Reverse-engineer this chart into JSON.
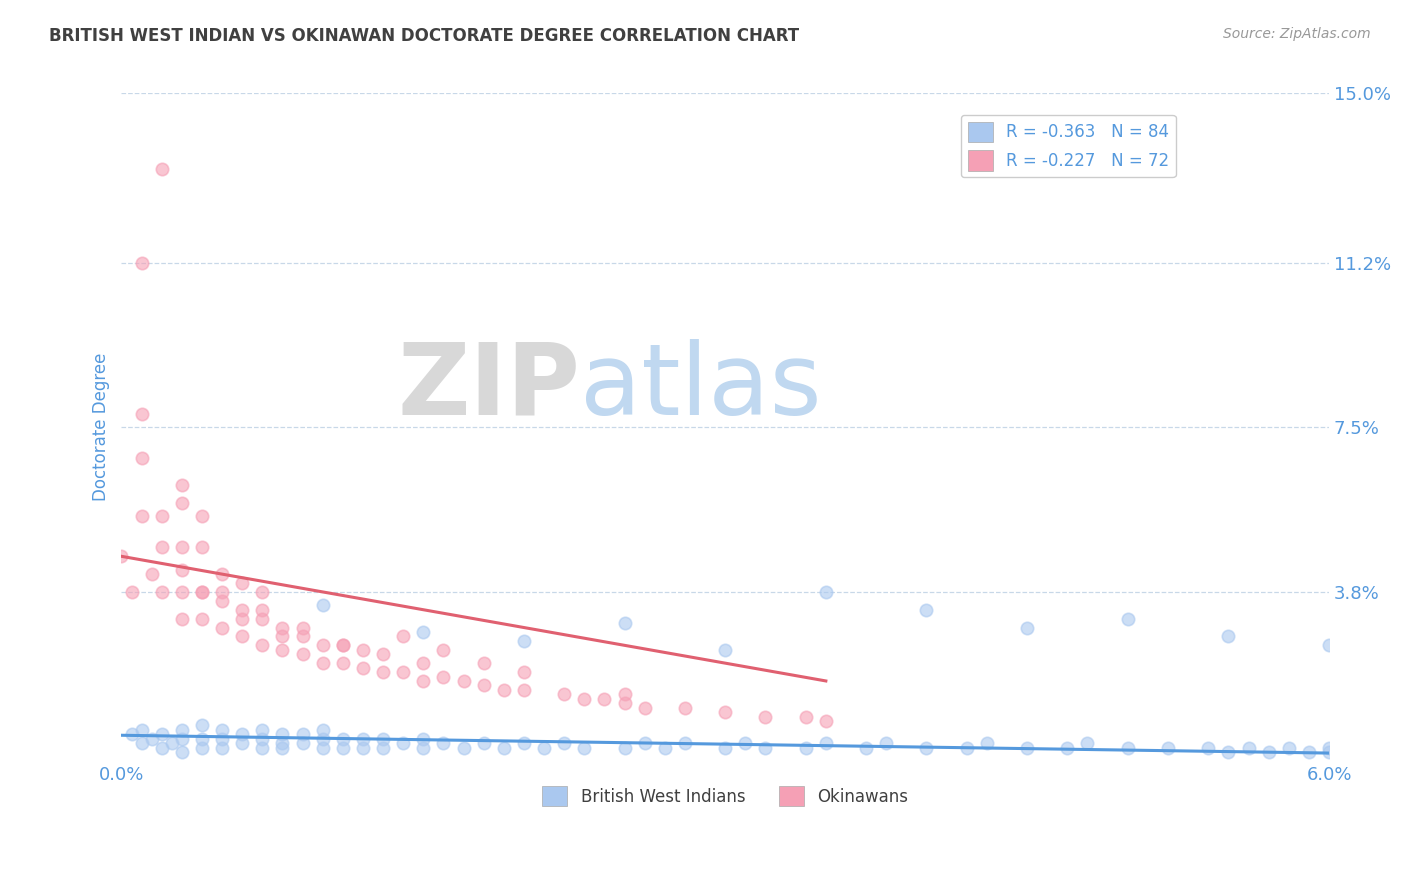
{
  "title": "BRITISH WEST INDIAN VS OKINAWAN DOCTORATE DEGREE CORRELATION CHART",
  "source": "Source: ZipAtlas.com",
  "ylabel": "Doctorate Degree",
  "xlim": [
    0.0,
    0.06
  ],
  "ylim": [
    0.0,
    0.15
  ],
  "yticks": [
    0.0,
    0.038,
    0.075,
    0.112,
    0.15
  ],
  "ytick_labels": [
    "",
    "3.8%",
    "7.5%",
    "11.2%",
    "15.0%"
  ],
  "xtick_labels": [
    "0.0%",
    "6.0%"
  ],
  "legend_entry1": "R = -0.363   N = 84",
  "legend_entry2": "R = -0.227   N = 72",
  "legend_label1": "British West Indians",
  "legend_label2": "Okinawans",
  "blue_color": "#aac8ef",
  "pink_color": "#f5a0b5",
  "blue_line_color": "#5599dd",
  "pink_line_color": "#e06070",
  "grid_color": "#c8d8e8",
  "title_color": "#404040",
  "axis_label_color": "#5599dd",
  "tick_color": "#5599dd",
  "watermark_zip_color": "#d8d8d8",
  "watermark_atlas_color": "#c0d8f0",
  "blue_scatter_x": [
    0.0005,
    0.001,
    0.001,
    0.0015,
    0.002,
    0.002,
    0.0025,
    0.003,
    0.003,
    0.003,
    0.004,
    0.004,
    0.004,
    0.005,
    0.005,
    0.005,
    0.006,
    0.006,
    0.007,
    0.007,
    0.007,
    0.008,
    0.008,
    0.008,
    0.009,
    0.009,
    0.01,
    0.01,
    0.01,
    0.011,
    0.011,
    0.012,
    0.012,
    0.013,
    0.013,
    0.014,
    0.015,
    0.015,
    0.016,
    0.017,
    0.018,
    0.019,
    0.02,
    0.021,
    0.022,
    0.023,
    0.025,
    0.026,
    0.027,
    0.028,
    0.03,
    0.031,
    0.032,
    0.034,
    0.035,
    0.037,
    0.038,
    0.04,
    0.042,
    0.043,
    0.045,
    0.047,
    0.048,
    0.05,
    0.052,
    0.054,
    0.055,
    0.056,
    0.057,
    0.058,
    0.059,
    0.06,
    0.06,
    0.06,
    0.055,
    0.05,
    0.045,
    0.04,
    0.035,
    0.03,
    0.025,
    0.02,
    0.015,
    0.01
  ],
  "blue_scatter_y": [
    0.006,
    0.004,
    0.007,
    0.005,
    0.003,
    0.006,
    0.004,
    0.002,
    0.005,
    0.007,
    0.003,
    0.005,
    0.008,
    0.003,
    0.005,
    0.007,
    0.004,
    0.006,
    0.003,
    0.005,
    0.007,
    0.004,
    0.006,
    0.003,
    0.004,
    0.006,
    0.003,
    0.005,
    0.007,
    0.003,
    0.005,
    0.003,
    0.005,
    0.003,
    0.005,
    0.004,
    0.003,
    0.005,
    0.004,
    0.003,
    0.004,
    0.003,
    0.004,
    0.003,
    0.004,
    0.003,
    0.003,
    0.004,
    0.003,
    0.004,
    0.003,
    0.004,
    0.003,
    0.003,
    0.004,
    0.003,
    0.004,
    0.003,
    0.003,
    0.004,
    0.003,
    0.003,
    0.004,
    0.003,
    0.003,
    0.003,
    0.002,
    0.003,
    0.002,
    0.003,
    0.002,
    0.002,
    0.003,
    0.026,
    0.028,
    0.032,
    0.03,
    0.034,
    0.038,
    0.025,
    0.031,
    0.027,
    0.029,
    0.035
  ],
  "pink_scatter_x": [
    0.0,
    0.0005,
    0.001,
    0.001,
    0.001,
    0.0015,
    0.002,
    0.002,
    0.002,
    0.003,
    0.003,
    0.003,
    0.003,
    0.004,
    0.004,
    0.004,
    0.005,
    0.005,
    0.005,
    0.006,
    0.006,
    0.006,
    0.007,
    0.007,
    0.007,
    0.008,
    0.008,
    0.009,
    0.009,
    0.01,
    0.01,
    0.011,
    0.011,
    0.012,
    0.012,
    0.013,
    0.013,
    0.014,
    0.015,
    0.015,
    0.016,
    0.017,
    0.018,
    0.019,
    0.02,
    0.022,
    0.023,
    0.024,
    0.025,
    0.026,
    0.028,
    0.03,
    0.032,
    0.034,
    0.035,
    0.014,
    0.016,
    0.018,
    0.02,
    0.025,
    0.005,
    0.007,
    0.009,
    0.011,
    0.003,
    0.004,
    0.006,
    0.008,
    0.003,
    0.004,
    0.001,
    0.002
  ],
  "pink_scatter_y": [
    0.046,
    0.038,
    0.055,
    0.068,
    0.078,
    0.042,
    0.038,
    0.048,
    0.055,
    0.032,
    0.038,
    0.043,
    0.058,
    0.032,
    0.038,
    0.048,
    0.03,
    0.036,
    0.042,
    0.028,
    0.034,
    0.04,
    0.026,
    0.032,
    0.038,
    0.025,
    0.03,
    0.024,
    0.028,
    0.022,
    0.026,
    0.022,
    0.026,
    0.021,
    0.025,
    0.02,
    0.024,
    0.02,
    0.018,
    0.022,
    0.019,
    0.018,
    0.017,
    0.016,
    0.016,
    0.015,
    0.014,
    0.014,
    0.013,
    0.012,
    0.012,
    0.011,
    0.01,
    0.01,
    0.009,
    0.028,
    0.025,
    0.022,
    0.02,
    0.015,
    0.038,
    0.034,
    0.03,
    0.026,
    0.048,
    0.038,
    0.032,
    0.028,
    0.062,
    0.055,
    0.112,
    0.133
  ],
  "blue_trend_x": [
    0.0,
    0.06
  ],
  "blue_trend_y": [
    0.0058,
    0.0018
  ],
  "pink_trend_x": [
    0.0,
    0.035
  ],
  "pink_trend_y": [
    0.046,
    0.018
  ]
}
